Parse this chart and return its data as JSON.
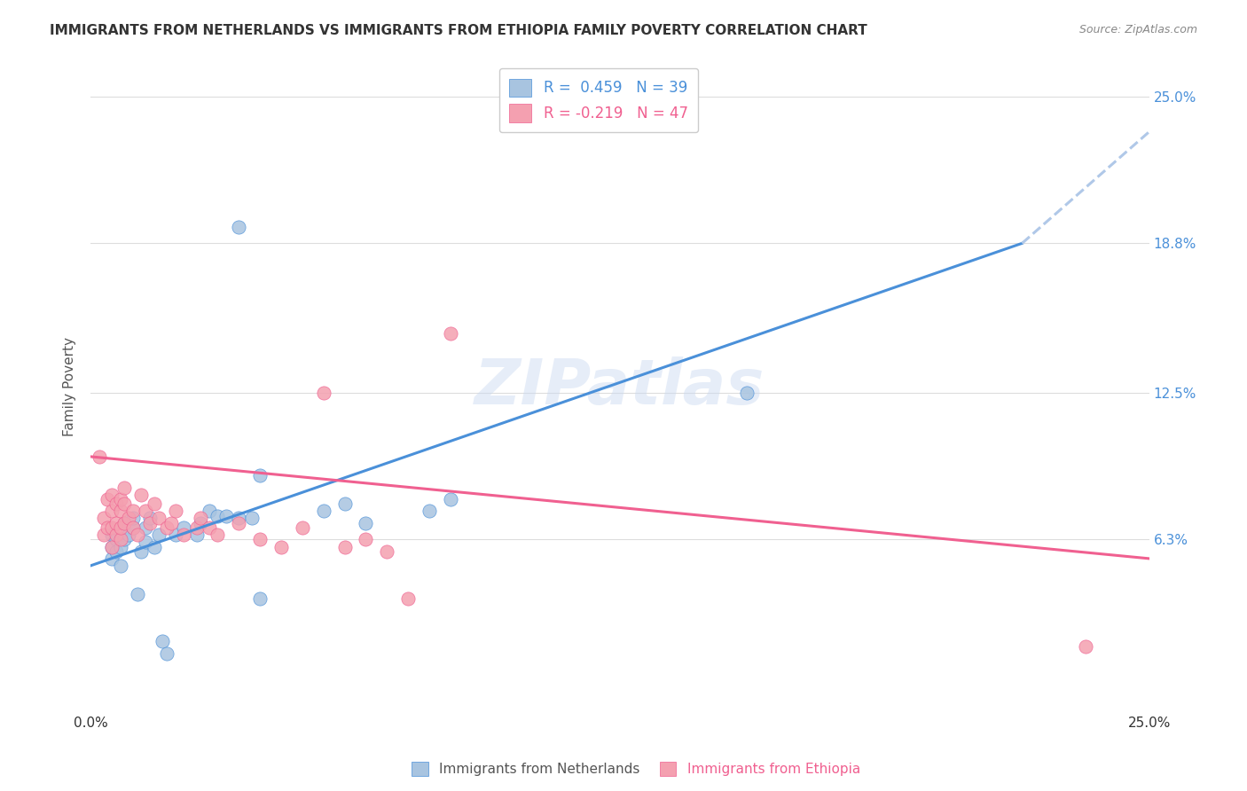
{
  "title": "IMMIGRANTS FROM NETHERLANDS VS IMMIGRANTS FROM ETHIOPIA FAMILY POVERTY CORRELATION CHART",
  "source": "Source: ZipAtlas.com",
  "ylabel": "Family Poverty",
  "ytick_labels": [
    "25.0%",
    "18.8%",
    "12.5%",
    "6.3%"
  ],
  "ytick_values": [
    0.25,
    0.188,
    0.125,
    0.063
  ],
  "xlim": [
    0.0,
    0.25
  ],
  "ylim": [
    -0.01,
    0.265
  ],
  "color_netherlands": "#a8c4e0",
  "color_ethiopia": "#f4a0b0",
  "color_line_netherlands": "#4a90d9",
  "color_line_ethiopia": "#f06090",
  "color_line_extrapolated": "#b0c8e8",
  "netherlands_scatter": [
    [
      0.005,
      0.055
    ],
    [
      0.005,
      0.06
    ],
    [
      0.005,
      0.065
    ],
    [
      0.006,
      0.058
    ],
    [
      0.006,
      0.063
    ],
    [
      0.007,
      0.052
    ],
    [
      0.007,
      0.06
    ],
    [
      0.008,
      0.07
    ],
    [
      0.008,
      0.063
    ],
    [
      0.009,
      0.065
    ],
    [
      0.01,
      0.068
    ],
    [
      0.01,
      0.072
    ],
    [
      0.011,
      0.04
    ],
    [
      0.012,
      0.058
    ],
    [
      0.013,
      0.062
    ],
    [
      0.013,
      0.068
    ],
    [
      0.014,
      0.072
    ],
    [
      0.015,
      0.06
    ],
    [
      0.016,
      0.065
    ],
    [
      0.017,
      0.02
    ],
    [
      0.018,
      0.015
    ],
    [
      0.02,
      0.065
    ],
    [
      0.022,
      0.068
    ],
    [
      0.025,
      0.065
    ],
    [
      0.026,
      0.07
    ],
    [
      0.028,
      0.075
    ],
    [
      0.03,
      0.073
    ],
    [
      0.032,
      0.073
    ],
    [
      0.035,
      0.072
    ],
    [
      0.038,
      0.072
    ],
    [
      0.04,
      0.09
    ],
    [
      0.055,
      0.075
    ],
    [
      0.06,
      0.078
    ],
    [
      0.065,
      0.07
    ],
    [
      0.08,
      0.075
    ],
    [
      0.085,
      0.08
    ],
    [
      0.155,
      0.125
    ],
    [
      0.035,
      0.195
    ],
    [
      0.04,
      0.038
    ]
  ],
  "ethiopia_scatter": [
    [
      0.002,
      0.098
    ],
    [
      0.003,
      0.065
    ],
    [
      0.003,
      0.072
    ],
    [
      0.004,
      0.068
    ],
    [
      0.004,
      0.08
    ],
    [
      0.005,
      0.06
    ],
    [
      0.005,
      0.068
    ],
    [
      0.005,
      0.075
    ],
    [
      0.005,
      0.082
    ],
    [
      0.006,
      0.065
    ],
    [
      0.006,
      0.07
    ],
    [
      0.006,
      0.078
    ],
    [
      0.007,
      0.063
    ],
    [
      0.007,
      0.068
    ],
    [
      0.007,
      0.075
    ],
    [
      0.007,
      0.08
    ],
    [
      0.008,
      0.07
    ],
    [
      0.008,
      0.078
    ],
    [
      0.008,
      0.085
    ],
    [
      0.009,
      0.072
    ],
    [
      0.01,
      0.068
    ],
    [
      0.01,
      0.075
    ],
    [
      0.011,
      0.065
    ],
    [
      0.012,
      0.082
    ],
    [
      0.013,
      0.075
    ],
    [
      0.014,
      0.07
    ],
    [
      0.015,
      0.078
    ],
    [
      0.016,
      0.072
    ],
    [
      0.018,
      0.068
    ],
    [
      0.019,
      0.07
    ],
    [
      0.02,
      0.075
    ],
    [
      0.022,
      0.065
    ],
    [
      0.025,
      0.068
    ],
    [
      0.026,
      0.072
    ],
    [
      0.028,
      0.068
    ],
    [
      0.03,
      0.065
    ],
    [
      0.035,
      0.07
    ],
    [
      0.04,
      0.063
    ],
    [
      0.045,
      0.06
    ],
    [
      0.05,
      0.068
    ],
    [
      0.055,
      0.125
    ],
    [
      0.06,
      0.06
    ],
    [
      0.065,
      0.063
    ],
    [
      0.07,
      0.058
    ],
    [
      0.075,
      0.038
    ],
    [
      0.085,
      0.15
    ],
    [
      0.235,
      0.018
    ]
  ],
  "netherlands_line_x": [
    0.0,
    0.22
  ],
  "netherlands_line_y": [
    0.052,
    0.188
  ],
  "ethiopia_line_x": [
    0.0,
    0.25
  ],
  "ethiopia_line_y": [
    0.098,
    0.055
  ],
  "extrapolated_line_x": [
    0.22,
    0.25
  ],
  "extrapolated_line_y": [
    0.188,
    0.235
  ],
  "watermark": "ZIPatlas",
  "background_color": "#ffffff",
  "grid_color": "#dddddd"
}
